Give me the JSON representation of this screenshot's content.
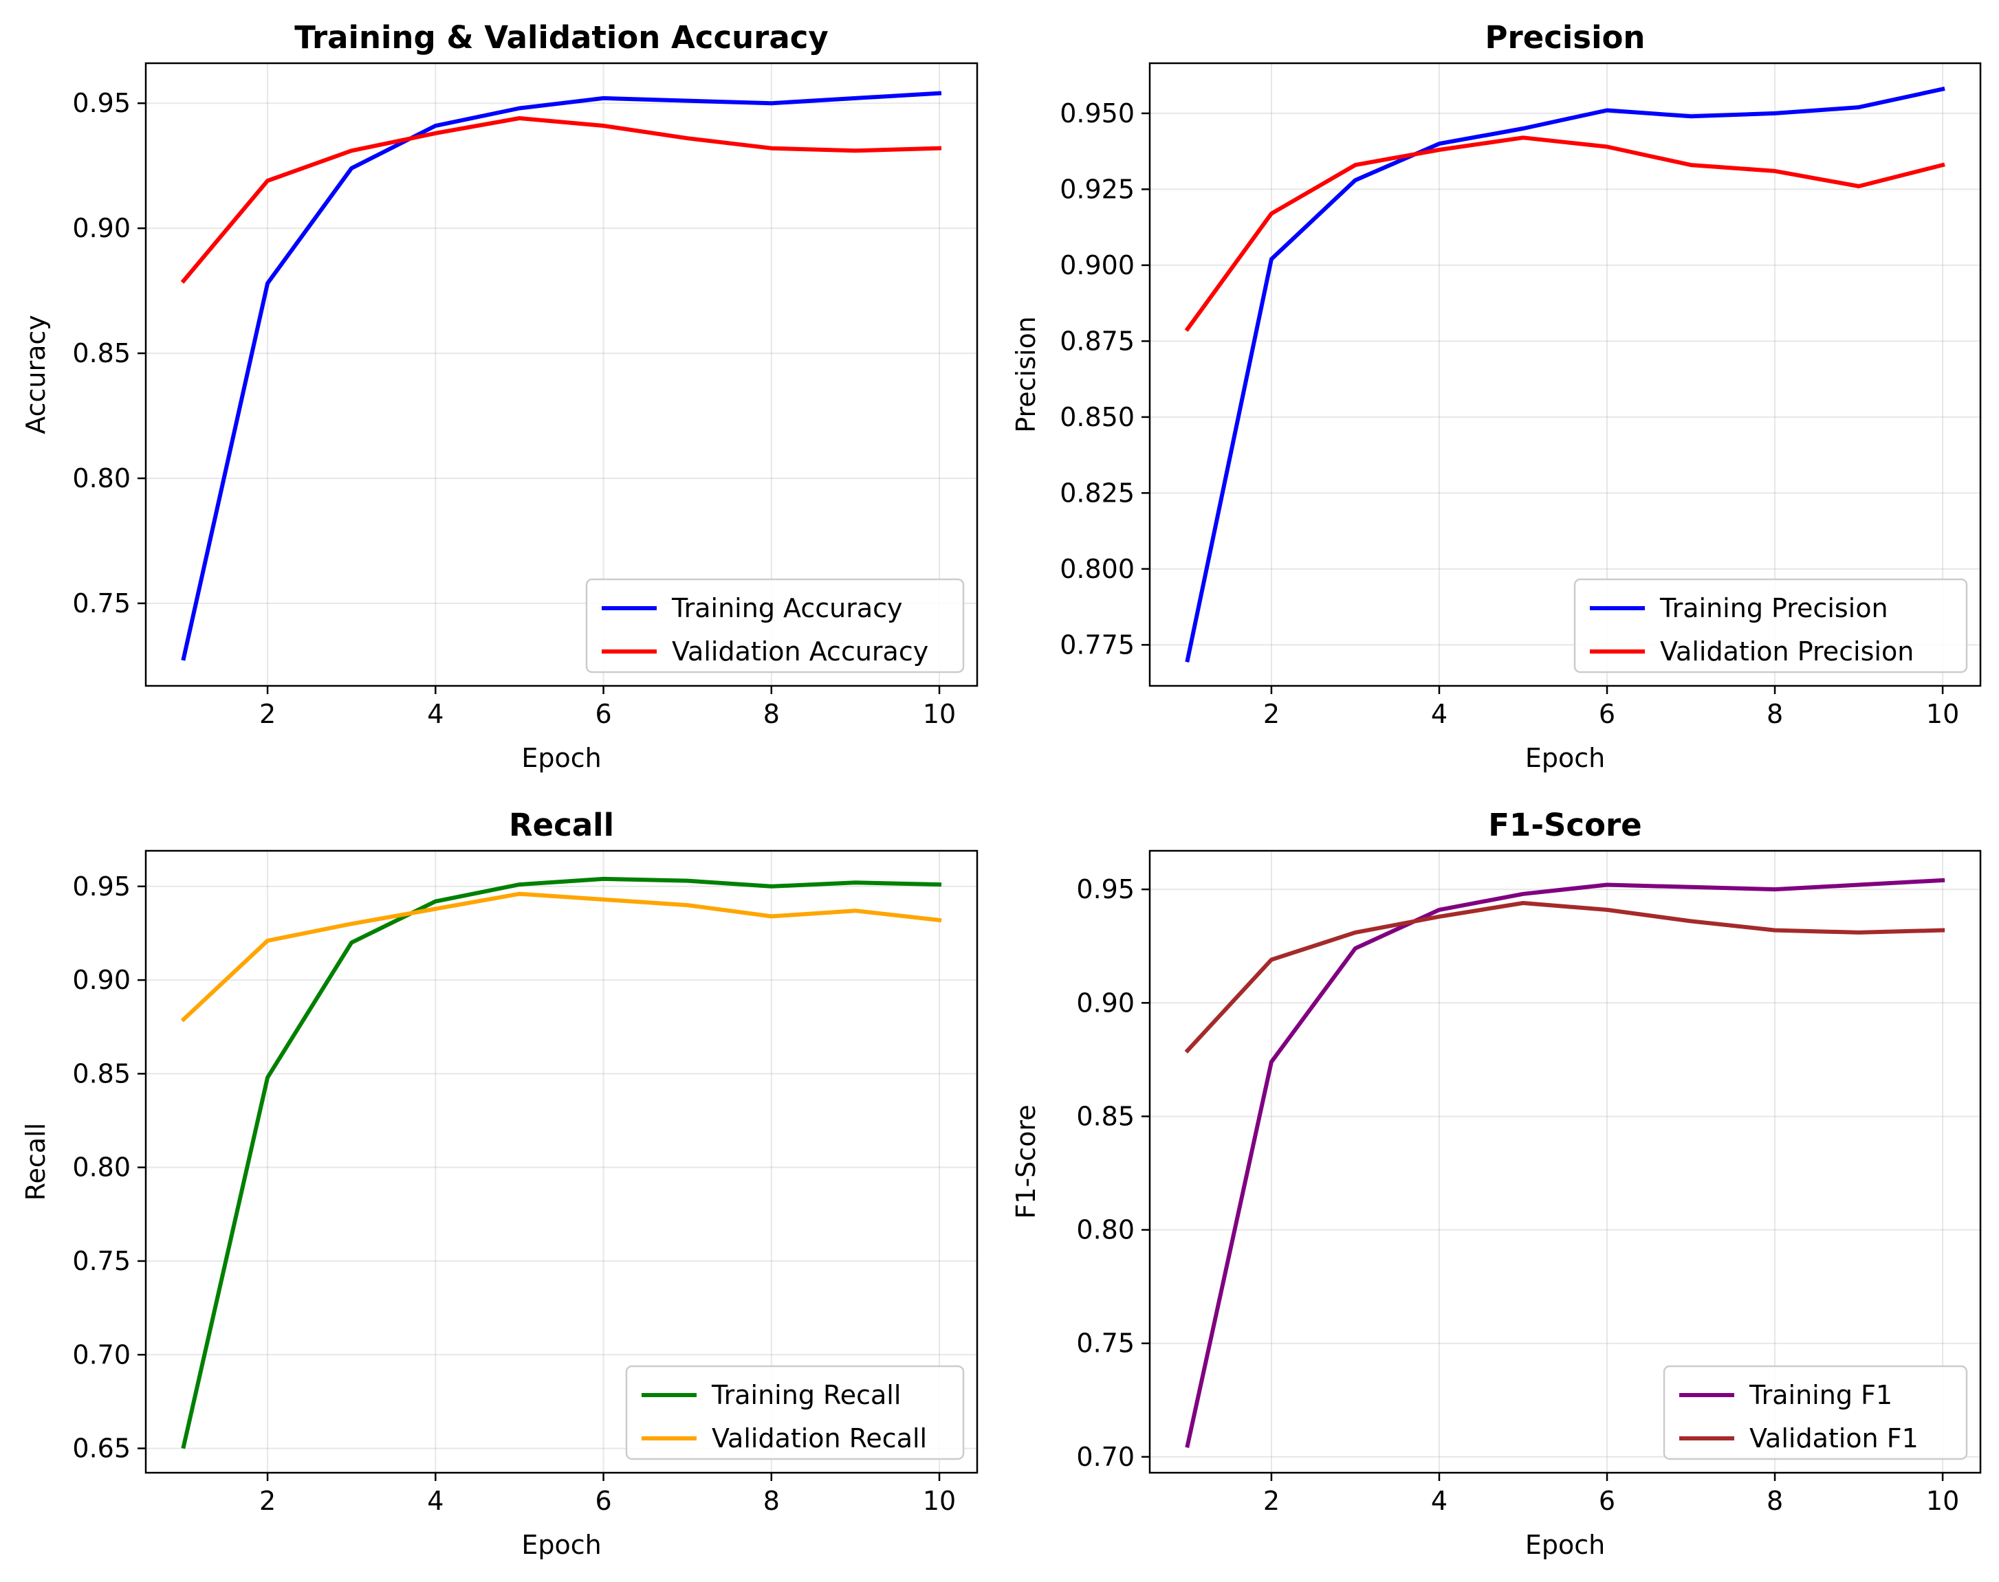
{
  "chart_data": [
    {
      "type": "line",
      "title": "Training & Validation Accuracy",
      "xlabel": "Epoch",
      "ylabel": "Accuracy",
      "x": [
        1,
        2,
        3,
        4,
        5,
        6,
        7,
        8,
        9,
        10
      ],
      "xlim": [
        0.55,
        10.45
      ],
      "xticks": [
        2,
        4,
        6,
        8,
        10
      ],
      "ylim": [
        0.717,
        0.966
      ],
      "yticks": [
        0.75,
        0.8,
        0.85,
        0.9,
        0.95
      ],
      "ytick_decimals": 2,
      "grid": true,
      "legend": "lower right",
      "series": [
        {
          "name": "Training Accuracy",
          "color": "#0000ff",
          "values": [
            0.728,
            0.878,
            0.924,
            0.941,
            0.948,
            0.952,
            0.951,
            0.95,
            0.952,
            0.954
          ]
        },
        {
          "name": "Validation Accuracy",
          "color": "#ff0000",
          "values": [
            0.879,
            0.919,
            0.931,
            0.938,
            0.944,
            0.941,
            0.936,
            0.932,
            0.931,
            0.932
          ]
        }
      ]
    },
    {
      "type": "line",
      "title": "Precision",
      "xlabel": "Epoch",
      "ylabel": "Precision",
      "x": [
        1,
        2,
        3,
        4,
        5,
        6,
        7,
        8,
        9,
        10
      ],
      "xlim": [
        0.55,
        10.45
      ],
      "xticks": [
        2,
        4,
        6,
        8,
        10
      ],
      "ylim": [
        0.7615,
        0.9665
      ],
      "yticks": [
        0.775,
        0.8,
        0.825,
        0.85,
        0.875,
        0.9,
        0.925,
        0.95
      ],
      "ytick_decimals": 3,
      "grid": true,
      "legend": "lower right",
      "series": [
        {
          "name": "Training Precision",
          "color": "#0000ff",
          "values": [
            0.77,
            0.902,
            0.928,
            0.94,
            0.945,
            0.951,
            0.949,
            0.95,
            0.952,
            0.958
          ]
        },
        {
          "name": "Validation Precision",
          "color": "#ff0000",
          "values": [
            0.879,
            0.917,
            0.933,
            0.938,
            0.942,
            0.939,
            0.933,
            0.931,
            0.926,
            0.933
          ]
        }
      ]
    },
    {
      "type": "line",
      "title": "Recall",
      "xlabel": "Epoch",
      "ylabel": "Recall",
      "x": [
        1,
        2,
        3,
        4,
        5,
        6,
        7,
        8,
        9,
        10
      ],
      "xlim": [
        0.55,
        10.45
      ],
      "xticks": [
        2,
        4,
        6,
        8,
        10
      ],
      "ylim": [
        0.637,
        0.969
      ],
      "yticks": [
        0.65,
        0.7,
        0.75,
        0.8,
        0.85,
        0.9,
        0.95
      ],
      "ytick_decimals": 2,
      "grid": true,
      "legend": "lower right",
      "series": [
        {
          "name": "Training Recall",
          "color": "#008000",
          "values": [
            0.651,
            0.848,
            0.92,
            0.942,
            0.951,
            0.954,
            0.953,
            0.95,
            0.952,
            0.951
          ]
        },
        {
          "name": "Validation Recall",
          "color": "#ffa500",
          "values": [
            0.879,
            0.921,
            0.93,
            0.938,
            0.946,
            0.943,
            0.94,
            0.934,
            0.937,
            0.932
          ]
        }
      ]
    },
    {
      "type": "line",
      "title": "F1-Score",
      "xlabel": "Epoch",
      "ylabel": "F1-Score",
      "x": [
        1,
        2,
        3,
        4,
        5,
        6,
        7,
        8,
        9,
        10
      ],
      "xlim": [
        0.55,
        10.45
      ],
      "xticks": [
        2,
        4,
        6,
        8,
        10
      ],
      "ylim": [
        0.693,
        0.967
      ],
      "yticks": [
        0.7,
        0.75,
        0.8,
        0.85,
        0.9,
        0.95
      ],
      "ytick_decimals": 2,
      "grid": true,
      "legend": "lower right",
      "series": [
        {
          "name": "Training F1",
          "color": "#800080",
          "values": [
            0.705,
            0.874,
            0.924,
            0.941,
            0.948,
            0.952,
            0.951,
            0.95,
            0.952,
            0.954
          ]
        },
        {
          "name": "Validation F1",
          "color": "#a52a2a",
          "values": [
            0.879,
            0.919,
            0.931,
            0.938,
            0.944,
            0.941,
            0.936,
            0.932,
            0.931,
            0.932
          ]
        }
      ]
    }
  ]
}
